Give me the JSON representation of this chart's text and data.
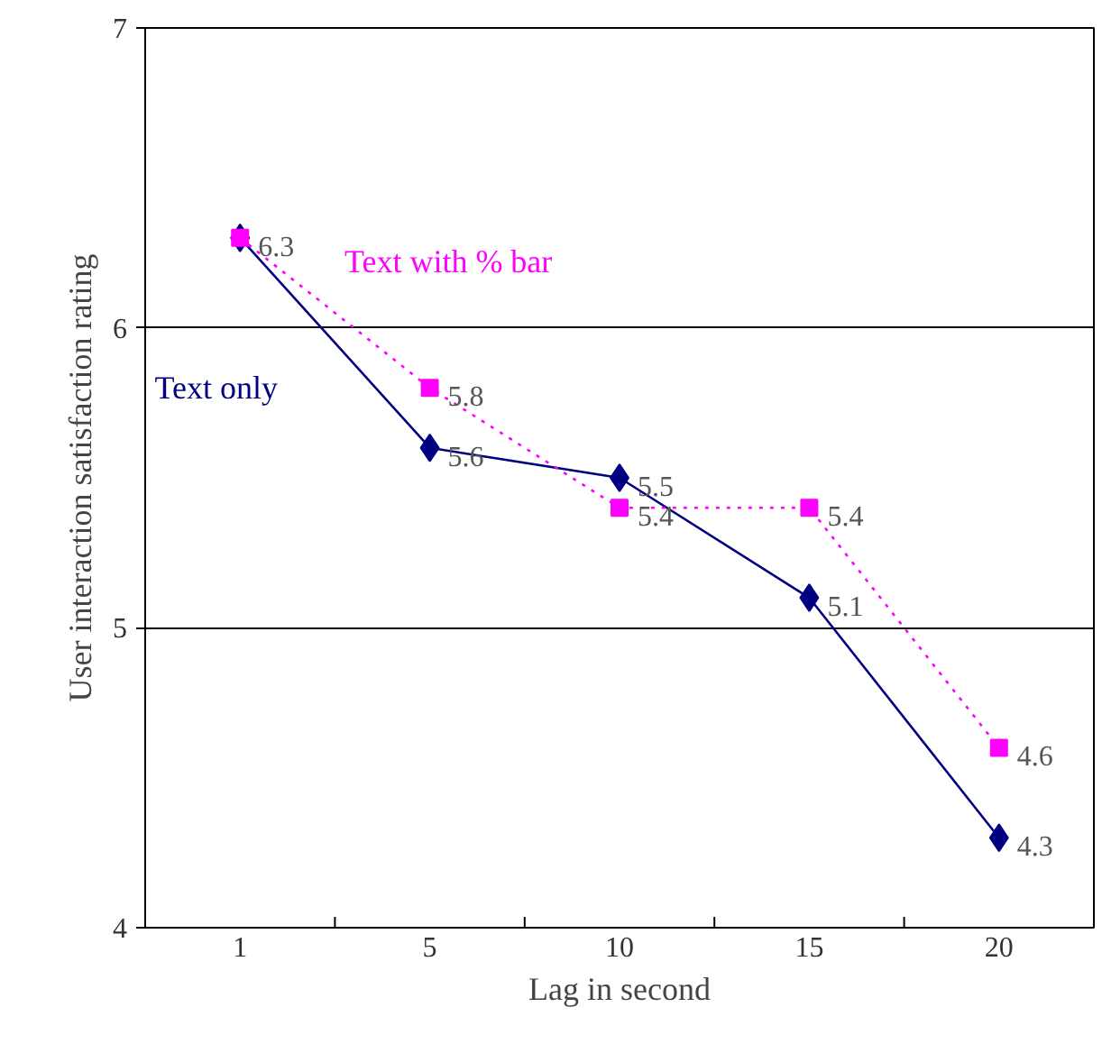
{
  "chart_data": {
    "type": "line",
    "xlabel": "Lag in second",
    "ylabel": "User interaction satisfaction rating",
    "categories": [
      "1",
      "5",
      "10",
      "15",
      "20"
    ],
    "series": [
      {
        "name": "Text only",
        "color": "#000080",
        "values": [
          6.3,
          5.6,
          5.5,
          5.1,
          4.3
        ],
        "value_labels": [
          null,
          "5.6",
          "5.5",
          "5.1",
          "4.3"
        ],
        "marker": "diamond",
        "line_style": "solid"
      },
      {
        "name": "Text with % bar",
        "color": "#ff00ff",
        "values": [
          6.3,
          5.8,
          5.4,
          5.4,
          4.6
        ],
        "value_labels": [
          "6.3",
          "5.8",
          "5.4",
          "5.4",
          "4.6"
        ],
        "marker": "square",
        "line_style": "dotted"
      }
    ],
    "ylim": [
      4,
      7
    ],
    "yticks": [
      4,
      5,
      6,
      7
    ],
    "grid": "y"
  }
}
